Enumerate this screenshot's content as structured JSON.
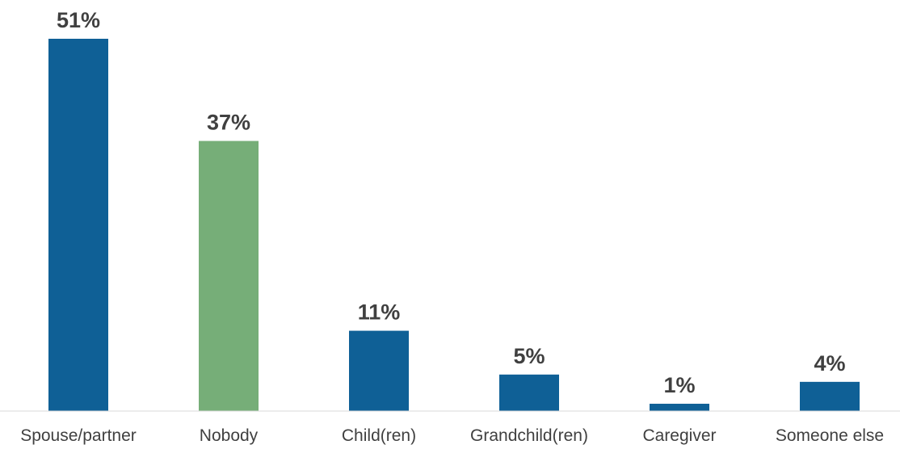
{
  "chart_data": {
    "type": "bar",
    "categories": [
      "Spouse/partner",
      "Nobody",
      "Child(ren)",
      "Grandchild(ren)",
      "Caregiver",
      "Someone else"
    ],
    "values": [
      51,
      37,
      11,
      5,
      1,
      4
    ],
    "value_labels": [
      "51%",
      "37%",
      "11%",
      "5%",
      "1%",
      "4%"
    ],
    "unit": "%",
    "title": "",
    "xlabel": "",
    "ylabel": "",
    "ylim": [
      0,
      51
    ],
    "grid": false,
    "legend": "none",
    "colors": {
      "default": "#0f6096",
      "highlight": "#76ae78",
      "axis": "#d9d9d9",
      "text": "#404040"
    },
    "highlight_category": "Nobody"
  }
}
